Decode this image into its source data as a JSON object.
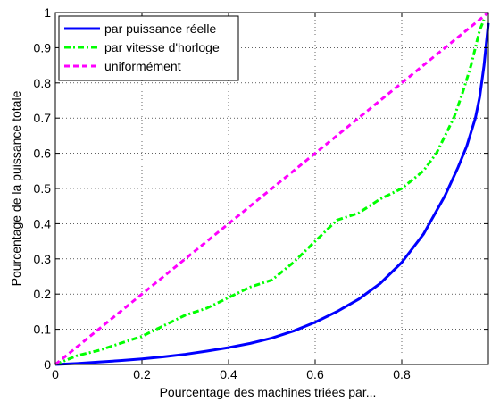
{
  "chart_data": {
    "type": "line",
    "title": "",
    "xlabel": "Pourcentage des machines triées par...",
    "ylabel": "Pourcentage de la puissance totale",
    "xlim": [
      0,
      1
    ],
    "ylim": [
      0,
      1
    ],
    "xticks": [
      0,
      0.2,
      0.4,
      0.6,
      0.8
    ],
    "xtick_labels": [
      "0",
      "0.2",
      "0.4",
      "0.6",
      "0.8"
    ],
    "yticks": [
      0,
      0.1,
      0.2,
      0.3,
      0.4,
      0.5,
      0.6,
      0.7,
      0.8,
      0.9,
      1
    ],
    "ytick_labels": [
      "0",
      "0.1",
      "0.2",
      "0.3",
      "0.4",
      "0.5",
      "0.6",
      "0.7",
      "0.8",
      "0.9",
      "1"
    ],
    "grid": true,
    "legend_position": "top-left",
    "series": [
      {
        "name": "par puissance réelle",
        "color": "#0000ff",
        "style": "solid",
        "x": [
          0,
          0.05,
          0.1,
          0.15,
          0.2,
          0.25,
          0.3,
          0.35,
          0.4,
          0.45,
          0.5,
          0.55,
          0.6,
          0.65,
          0.7,
          0.75,
          0.8,
          0.85,
          0.9,
          0.93,
          0.95,
          0.97,
          0.98,
          0.99,
          1.0
        ],
        "y": [
          0,
          0.003,
          0.007,
          0.011,
          0.016,
          0.022,
          0.029,
          0.038,
          0.048,
          0.06,
          0.075,
          0.095,
          0.12,
          0.15,
          0.185,
          0.23,
          0.29,
          0.37,
          0.48,
          0.56,
          0.62,
          0.7,
          0.76,
          0.85,
          0.97
        ]
      },
      {
        "name": "par vitesse d'horloge",
        "color": "#00ff00",
        "style": "dashdot",
        "x": [
          0,
          0.02,
          0.05,
          0.1,
          0.15,
          0.2,
          0.25,
          0.3,
          0.35,
          0.4,
          0.45,
          0.5,
          0.55,
          0.6,
          0.65,
          0.7,
          0.75,
          0.8,
          0.85,
          0.88,
          0.9,
          0.92,
          0.94,
          0.96,
          0.98,
          0.99
        ],
        "y": [
          0,
          0.01,
          0.025,
          0.04,
          0.06,
          0.08,
          0.11,
          0.14,
          0.16,
          0.19,
          0.22,
          0.24,
          0.29,
          0.35,
          0.41,
          0.43,
          0.47,
          0.5,
          0.55,
          0.6,
          0.65,
          0.7,
          0.77,
          0.85,
          0.95,
          0.98
        ]
      },
      {
        "name": "uniformément",
        "color": "#ff00ff",
        "style": "dashed",
        "x": [
          0,
          1
        ],
        "y": [
          0,
          1
        ]
      }
    ]
  }
}
